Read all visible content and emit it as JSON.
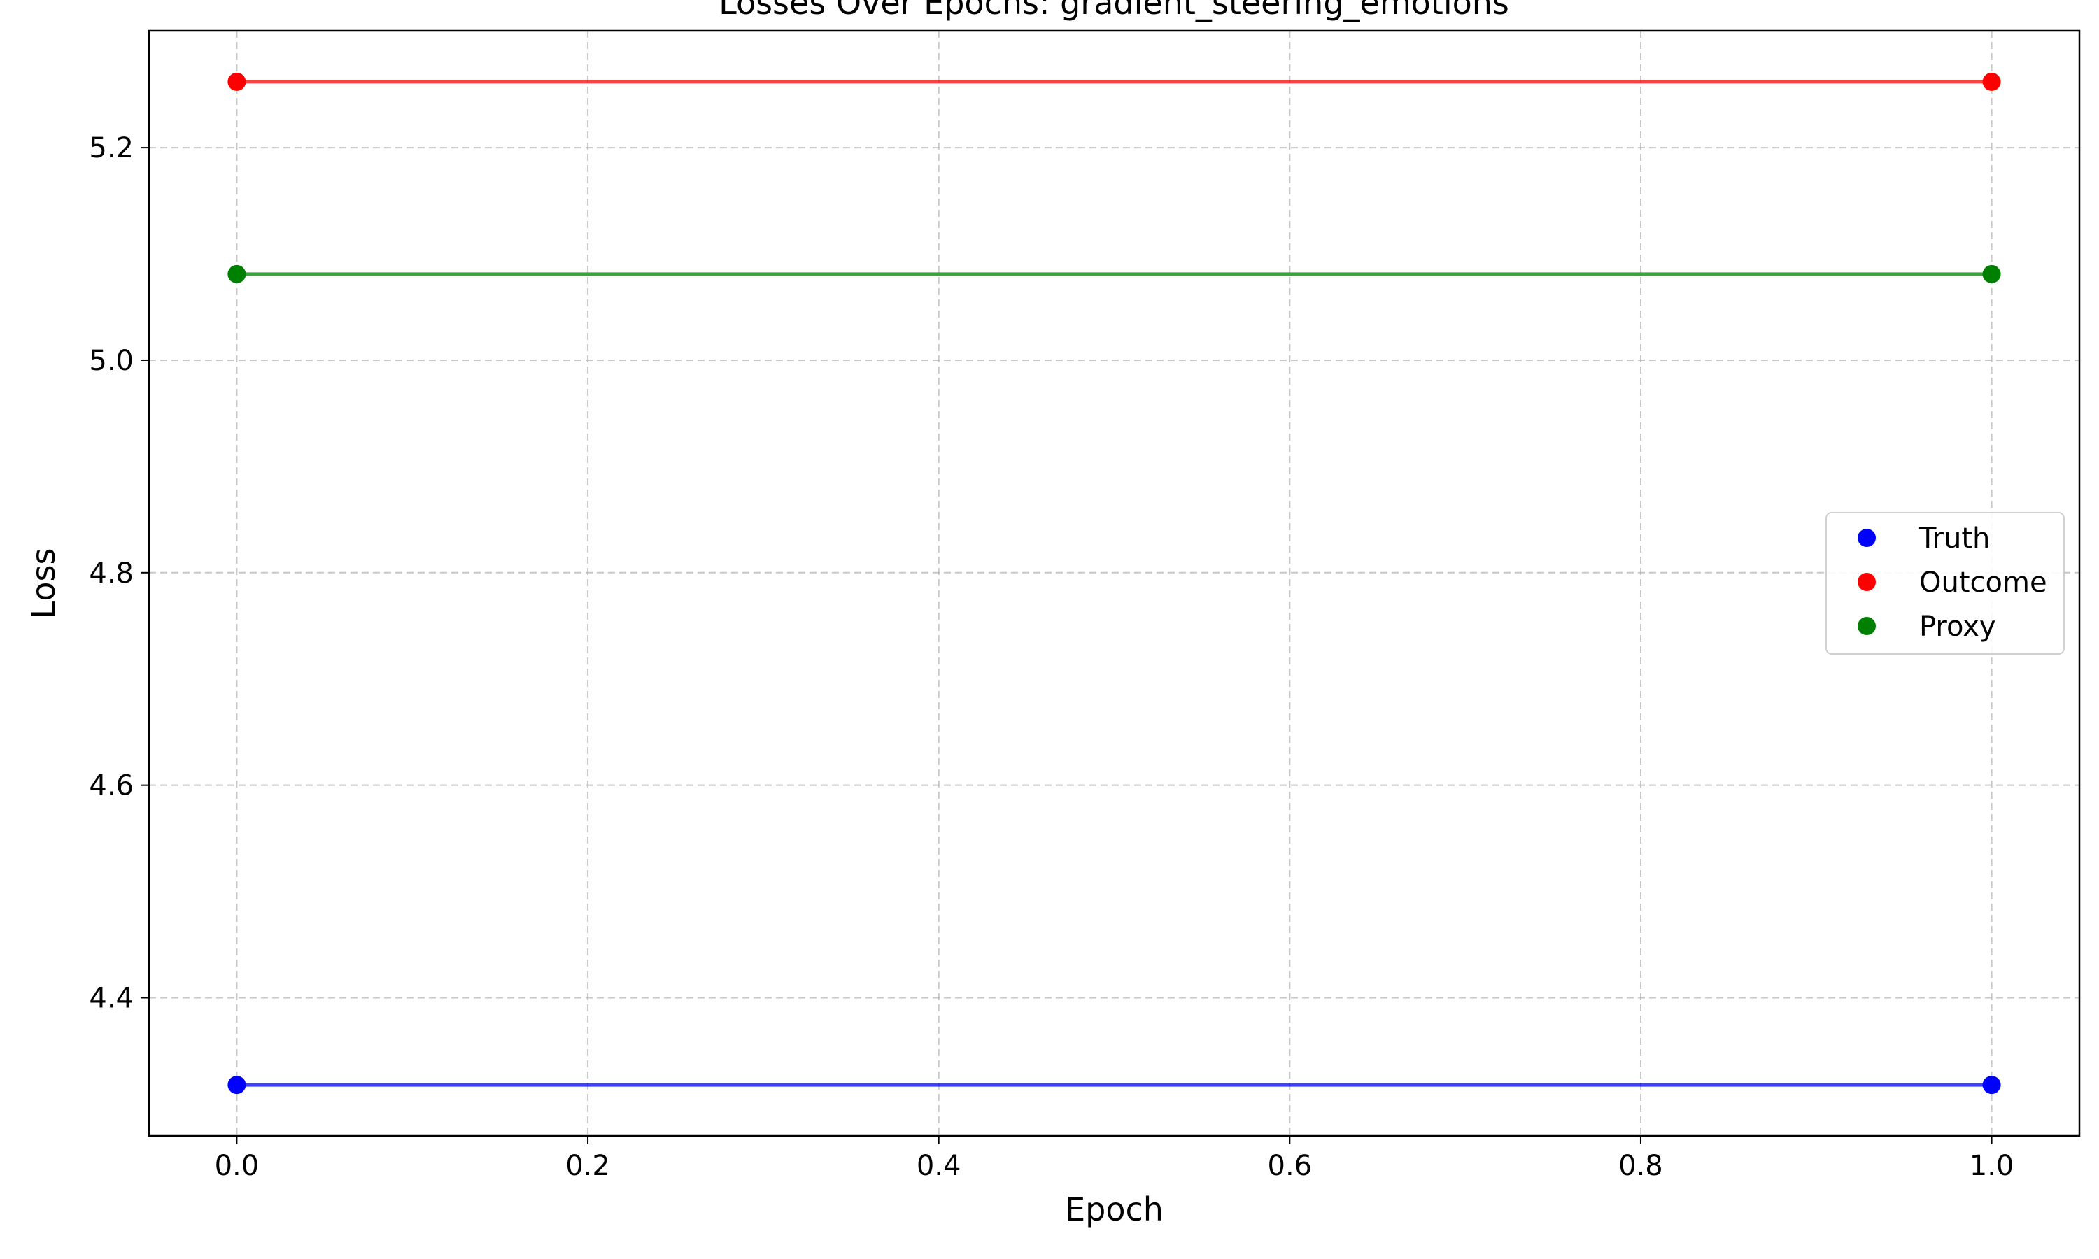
{
  "chart_data": {
    "type": "line",
    "title": "Losses Over Epochs: gradient_steering_emotions",
    "xlabel": "Epoch",
    "ylabel": "Loss",
    "xlim": [
      -0.05,
      1.05
    ],
    "ylim": [
      4.27,
      5.31
    ],
    "x_ticks": [
      "0.0",
      "0.2",
      "0.4",
      "0.6",
      "0.8",
      "1.0"
    ],
    "y_ticks": [
      "4.4",
      "4.6",
      "4.8",
      "5.0",
      "5.2"
    ],
    "x": [
      0,
      1
    ],
    "series": [
      {
        "name": "Truth",
        "color": "#0000ff",
        "values": [
          4.318,
          4.318
        ]
      },
      {
        "name": "Outcome",
        "color": "#ff0000",
        "values": [
          5.262,
          5.262
        ]
      },
      {
        "name": "Proxy",
        "color": "#008000",
        "values": [
          5.081,
          5.081
        ]
      }
    ],
    "grid": true,
    "grid_style": "dashed",
    "legend_position": "center-right"
  }
}
